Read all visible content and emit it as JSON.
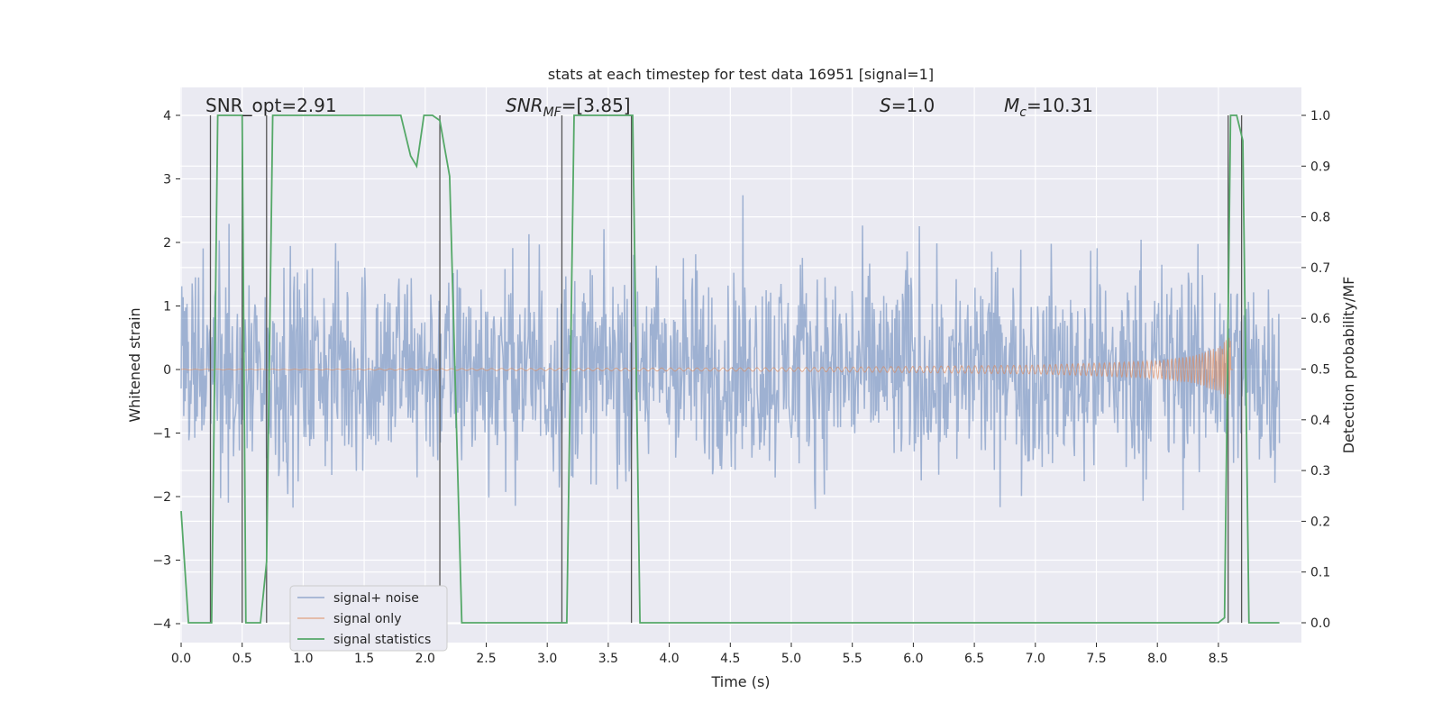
{
  "chart_data": {
    "type": "line",
    "title": "stats at each timestep for test data 16951 [signal=1]",
    "xlabel": "Time (s)",
    "ylabel": "Whitened strain",
    "ylabel_right": "Detection probability/MF",
    "xlim": [
      0,
      9.0
    ],
    "ylim": [
      -4.2,
      4.4
    ],
    "ylim_right": [
      -0.05,
      1.03
    ],
    "x_ticks": [
      0.0,
      0.5,
      1.0,
      1.5,
      2.0,
      2.5,
      3.0,
      3.5,
      4.0,
      4.5,
      5.0,
      5.5,
      6.0,
      6.5,
      7.0,
      7.5,
      8.0,
      8.5
    ],
    "x_tick_labels": [
      "0.0",
      "0.5",
      "1.0",
      "1.5",
      "2.0",
      "2.5",
      "3.0",
      "3.5",
      "4.0",
      "4.5",
      "5.0",
      "5.5",
      "6.0",
      "6.5",
      "7.0",
      "7.5",
      "8.0",
      "8.5"
    ],
    "y_ticks": [
      -4,
      -3,
      -2,
      -1,
      0,
      1,
      2,
      3,
      4
    ],
    "y_tick_labels": [
      "−4",
      "−3",
      "−2",
      "−1",
      "0",
      "1",
      "2",
      "3",
      "4"
    ],
    "y_right_ticks": [
      0.0,
      0.1,
      0.2,
      0.3,
      0.4,
      0.5,
      0.6,
      0.7,
      0.8,
      0.9,
      1.0
    ],
    "y_right_tick_labels": [
      "0.0",
      "0.1",
      "0.2",
      "0.3",
      "0.4",
      "0.5",
      "0.6",
      "0.7",
      "0.8",
      "0.9",
      "1.0"
    ],
    "grid": true,
    "legend_placement": "lower-left",
    "annotations": {
      "snr_opt": "SNR_opt=2.91",
      "snr_mf": "SNR_MF=[3.85]",
      "s_value": "S=1.0",
      "mc_value": "M_c=10.31"
    },
    "series": [
      {
        "name": "signal+ noise",
        "color": "#4c72b0",
        "description_values": "whitened strain noise, approx. within [-3.7, 3.6]"
      },
      {
        "name": "signal only",
        "color": "#dd8452",
        "x": [
          5.0,
          6.0,
          7.0,
          7.5,
          8.0,
          8.3,
          8.5,
          8.6
        ],
        "envelope": [
          0.03,
          0.05,
          0.07,
          0.1,
          0.14,
          0.22,
          0.35,
          0.55
        ]
      },
      {
        "name": "signal statistics",
        "color": "#55a868",
        "axis": "right",
        "x": [
          0.0,
          0.06,
          0.2,
          0.25,
          0.3,
          0.5,
          0.53,
          0.58,
          0.65,
          0.7,
          0.75,
          1.8,
          1.88,
          1.93,
          1.99,
          2.06,
          2.12,
          2.2,
          2.3,
          2.35,
          3.1,
          3.16,
          3.22,
          3.7,
          3.76,
          3.85,
          7.2,
          7.3,
          8.5,
          8.55,
          8.6,
          8.65,
          8.7,
          8.75,
          8.8,
          9.0
        ],
        "values": [
          0.22,
          0.0,
          0.0,
          0.0,
          1.0,
          1.0,
          0.0,
          0.0,
          0.0,
          0.12,
          1.0,
          1.0,
          0.92,
          0.9,
          1.0,
          1.0,
          0.99,
          0.88,
          0.0,
          0.0,
          0.0,
          0.0,
          1.0,
          1.0,
          0.0,
          0.0,
          0.0,
          0.0,
          0.0,
          0.01,
          1.0,
          1.0,
          0.95,
          0.0,
          0.0,
          0.0
        ]
      }
    ],
    "vertical_lines_x": [
      0.24,
      0.5,
      0.7,
      2.12,
      3.12,
      3.69,
      8.58,
      8.69
    ]
  }
}
